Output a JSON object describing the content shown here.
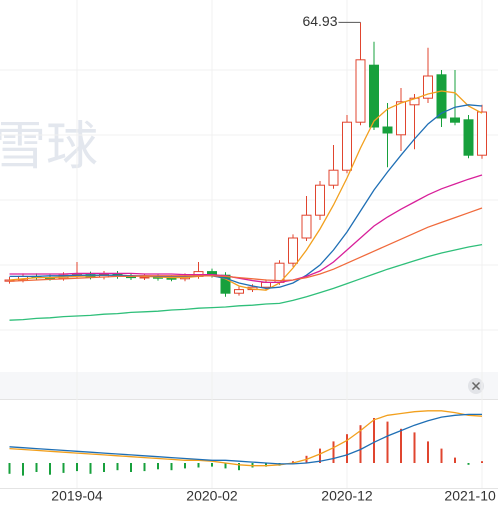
{
  "watermark": "雪球",
  "chart_data": [
    {
      "type": "candlestick",
      "categories": [
        null,
        null,
        null,
        null,
        null,
        "2019-04",
        null,
        null,
        null,
        null,
        null,
        null,
        null,
        null,
        null,
        "2020-02",
        null,
        null,
        null,
        null,
        null,
        null,
        null,
        null,
        null,
        "2020-12",
        null,
        null,
        null,
        null,
        null,
        null,
        null,
        null,
        null,
        "2021-10"
      ],
      "open": [
        21.8,
        22.0,
        22.6,
        22.4,
        22.3,
        22.8,
        22.9,
        22.5,
        23.0,
        22.6,
        22.4,
        22.5,
        22.3,
        22.2,
        22.6,
        23.4,
        22.8,
        19.8,
        20.4,
        20.8,
        21.6,
        24.8,
        29.0,
        32.8,
        37.8,
        40.3,
        48.3,
        57.8,
        47.5,
        46.2,
        51.2,
        52.3,
        56.2,
        49.0,
        48.7,
        42.8
      ],
      "close": [
        22.0,
        22.6,
        22.4,
        22.3,
        22.8,
        22.9,
        22.5,
        23.0,
        22.6,
        22.4,
        22.5,
        22.3,
        22.2,
        22.6,
        23.4,
        22.8,
        19.8,
        20.4,
        20.8,
        21.6,
        24.8,
        29.0,
        32.8,
        37.8,
        40.3,
        48.3,
        58.7,
        47.5,
        46.5,
        51.7,
        52.3,
        56.0,
        49.0,
        48.3,
        42.8,
        50.0
      ],
      "high": [
        22.5,
        23.1,
        23.1,
        22.9,
        23.3,
        25.0,
        23.4,
        23.5,
        23.5,
        23.1,
        23.0,
        22.9,
        22.8,
        23.1,
        25.0,
        23.9,
        23.3,
        20.9,
        21.3,
        22.1,
        25.3,
        29.6,
        36.0,
        38.5,
        44.5,
        49.5,
        64.93,
        61.7,
        51.5,
        54.0,
        53.0,
        60.7,
        57.0,
        57.0,
        49.5,
        51.2
      ],
      "low": [
        21.4,
        21.6,
        22.0,
        21.9,
        21.9,
        22.4,
        22.1,
        22.1,
        22.2,
        22.0,
        22.0,
        21.9,
        21.8,
        21.8,
        22.2,
        22.4,
        19.2,
        19.4,
        20.0,
        20.4,
        21.2,
        24.2,
        28.5,
        32.0,
        37.2,
        39.8,
        47.8,
        47.0,
        40.8,
        43.5,
        43.8,
        51.5,
        47.5,
        47.8,
        42.3,
        42.2
      ],
      "up_color": "#e0452f",
      "down_color": "#17a03c",
      "ylim": [
        7,
        68
      ],
      "ma": [
        {
          "color": "#f2a01e",
          "values": [
            22.0,
            22.2,
            22.4,
            22.4,
            22.5,
            22.6,
            22.7,
            22.8,
            22.8,
            22.7,
            22.6,
            22.5,
            22.4,
            22.4,
            22.6,
            22.8,
            22.2,
            21.0,
            20.5,
            20.3,
            21.5,
            24.0,
            27.0,
            30.5,
            34.5,
            39.0,
            44.0,
            48.5,
            50.5,
            51.5,
            52.2,
            53.0,
            53.5,
            53.2,
            51.0,
            49.8
          ]
        },
        {
          "color": "#1f6fb5",
          "values": [
            22.6,
            22.6,
            22.6,
            22.7,
            22.7,
            22.8,
            22.8,
            22.8,
            22.8,
            22.7,
            22.7,
            22.6,
            22.6,
            22.6,
            22.7,
            22.7,
            22.3,
            21.5,
            21.0,
            20.6,
            20.8,
            21.5,
            22.8,
            24.5,
            27.0,
            30.0,
            33.5,
            37.0,
            40.0,
            42.8,
            45.5,
            48.0,
            49.8,
            50.8,
            51.2,
            51.0
          ]
        },
        {
          "color": "#d8209a",
          "values": [
            23.0,
            23.0,
            23.0,
            23.0,
            23.0,
            23.1,
            23.1,
            23.1,
            23.1,
            23.1,
            23.0,
            23.0,
            23.0,
            22.9,
            22.9,
            22.9,
            22.7,
            22.3,
            21.9,
            21.6,
            21.6,
            22.0,
            22.6,
            23.5,
            25.0,
            27.0,
            29.0,
            31.0,
            32.5,
            33.8,
            35.0,
            36.2,
            37.2,
            38.0,
            38.8,
            39.5
          ]
        },
        {
          "color": "#f06a3c",
          "values": [
            21.8,
            21.9,
            22.0,
            22.1,
            22.2,
            22.3,
            22.4,
            22.5,
            22.6,
            22.6,
            22.7,
            22.7,
            22.7,
            22.7,
            22.7,
            22.7,
            22.6,
            22.4,
            22.2,
            22.0,
            21.9,
            22.0,
            22.4,
            23.0,
            23.8,
            24.8,
            25.8,
            26.8,
            27.8,
            28.8,
            29.8,
            30.8,
            31.6,
            32.4,
            33.2,
            34.0
          ]
        },
        {
          "color": "#2fbf7a",
          "values": [
            15.3,
            15.4,
            15.6,
            15.7,
            15.9,
            16.0,
            16.1,
            16.3,
            16.4,
            16.6,
            16.7,
            16.8,
            17.0,
            17.1,
            17.3,
            17.4,
            17.5,
            17.7,
            17.8,
            18.0,
            18.1,
            18.6,
            19.2,
            19.9,
            20.6,
            21.4,
            22.2,
            23.0,
            23.8,
            24.5,
            25.2,
            25.9,
            26.5,
            27.0,
            27.5,
            27.9
          ]
        }
      ]
    },
    {
      "type": "macd",
      "ylim": [
        -3,
        7
      ],
      "series": [
        {
          "color": "#f2a01e",
          "values": [
            1.6,
            1.5,
            1.4,
            1.3,
            1.2,
            1.1,
            1.0,
            0.9,
            0.8,
            0.7,
            0.6,
            0.5,
            0.4,
            0.3,
            0.3,
            0.2,
            0.0,
            -0.2,
            -0.3,
            -0.3,
            -0.2,
            0.0,
            0.4,
            1.0,
            1.7,
            2.5,
            3.6,
            4.8,
            5.3,
            5.5,
            5.7,
            5.8,
            5.8,
            5.6,
            5.3,
            5.2
          ]
        },
        {
          "color": "#1f6fb5",
          "values": [
            1.8,
            1.7,
            1.6,
            1.5,
            1.4,
            1.3,
            1.2,
            1.1,
            1.0,
            0.9,
            0.8,
            0.7,
            0.6,
            0.5,
            0.4,
            0.3,
            0.3,
            0.2,
            0.1,
            0.0,
            -0.1,
            -0.1,
            0.0,
            0.2,
            0.5,
            0.9,
            1.5,
            2.3,
            3.0,
            3.6,
            4.2,
            4.7,
            5.1,
            5.3,
            5.4,
            5.4
          ]
        }
      ],
      "histogram": {
        "up_color": "#e0452f",
        "down_color": "#17a03c",
        "values": [
          -1.2,
          -1.4,
          -1.0,
          -1.3,
          -1.1,
          -0.9,
          -1.2,
          -1.0,
          -0.8,
          -1.0,
          -0.9,
          -0.7,
          -0.8,
          -0.6,
          -0.5,
          -0.4,
          -0.6,
          -0.8,
          -0.5,
          -0.4,
          -0.3,
          0.2,
          0.8,
          1.6,
          2.4,
          3.2,
          4.2,
          5.0,
          4.6,
          3.8,
          3.4,
          2.4,
          1.6,
          0.6,
          -0.2,
          0.2
        ]
      }
    }
  ]
}
